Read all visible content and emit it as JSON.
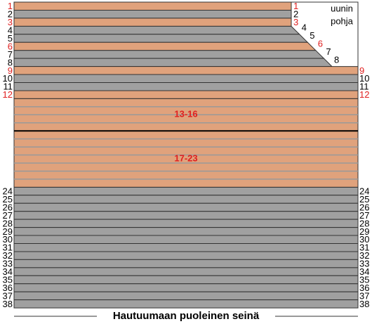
{
  "rows": [
    {
      "label": "1",
      "color": "#e0a27c"
    },
    {
      "label": "2",
      "color": "#a0a0a0"
    },
    {
      "label": "3",
      "color": "#e0a27c"
    },
    {
      "label": "4",
      "color": "#a0a0a0"
    },
    {
      "label": "5",
      "color": "#a0a0a0"
    },
    {
      "label": "6",
      "color": "#e0a27c"
    },
    {
      "label": "7",
      "color": "#a0a0a0"
    },
    {
      "label": "8",
      "color": "#a0a0a0"
    },
    {
      "label": "9",
      "color": "#e0a27c"
    },
    {
      "label": "10",
      "color": "#a0a0a0"
    },
    {
      "label": "11",
      "color": "#a0a0a0"
    },
    {
      "label": "12",
      "color": "#e0a27c"
    },
    {
      "label": "24",
      "color": "#a0a0a0"
    },
    {
      "label": "25",
      "color": "#a0a0a0"
    },
    {
      "label": "26",
      "color": "#a0a0a0"
    },
    {
      "label": "27",
      "color": "#a0a0a0"
    },
    {
      "label": "28",
      "color": "#a0a0a0"
    },
    {
      "label": "29",
      "color": "#a0a0a0"
    },
    {
      "label": "30",
      "color": "#a0a0a0"
    },
    {
      "label": "31",
      "color": "#a0a0a0"
    },
    {
      "label": "32",
      "color": "#a0a0a0"
    },
    {
      "label": "33",
      "color": "#a0a0a0"
    },
    {
      "label": "34",
      "color": "#a0a0a0"
    },
    {
      "label": "35",
      "color": "#a0a0a0"
    },
    {
      "label": "36",
      "color": "#a0a0a0"
    },
    {
      "label": "37",
      "color": "#a0a0a0"
    },
    {
      "label": "38",
      "color": "#a0a0a0"
    }
  ],
  "groups": [
    {
      "label": "13-16"
    },
    {
      "label": "17-23"
    }
  ],
  "corner_label": [
    "uunin",
    "pohja"
  ],
  "footer": "Hautuumaan puoleinen seinä"
}
